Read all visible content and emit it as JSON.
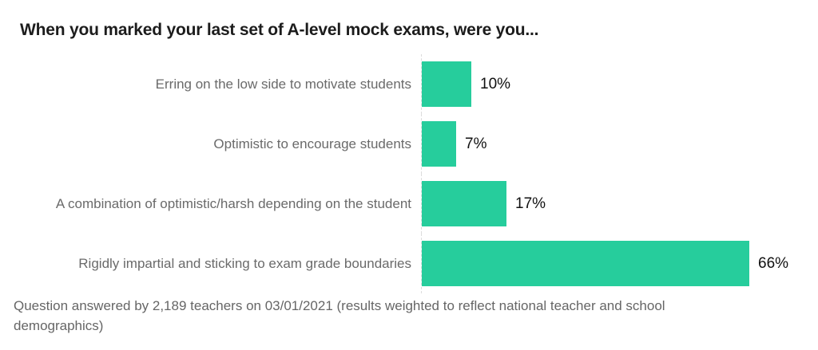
{
  "chart_data": {
    "type": "bar",
    "orientation": "horizontal",
    "title": "When you marked your last set of A-level mock exams, were you...",
    "categories": [
      "Erring on the low side to motivate students",
      "Optimistic to encourage students",
      "A combination of optimistic/harsh depending on the student",
      "Rigidly impartial and sticking to exam grade boundaries"
    ],
    "values": [
      10,
      7,
      17,
      66
    ],
    "value_labels": [
      "10%",
      "7%",
      "17%",
      "66%"
    ],
    "xlabel": "",
    "ylabel": "",
    "xlim": [
      0,
      66
    ],
    "grid": false,
    "legend": false,
    "axis_line_style": "dotted"
  },
  "footer": {
    "lines": [
      "Question answered by 2,189 teachers on 03/01/2021 (results weighted to reflect national teacher and school",
      "demographics)"
    ]
  },
  "colors": {
    "bar": "#26cd9c",
    "title_text": "#1c1c1c",
    "category_text": "#6a6a6a",
    "value_text": "#111111",
    "footer_text": "#666666",
    "axis_line": "#dcdcdc",
    "background": "#ffffff"
  }
}
